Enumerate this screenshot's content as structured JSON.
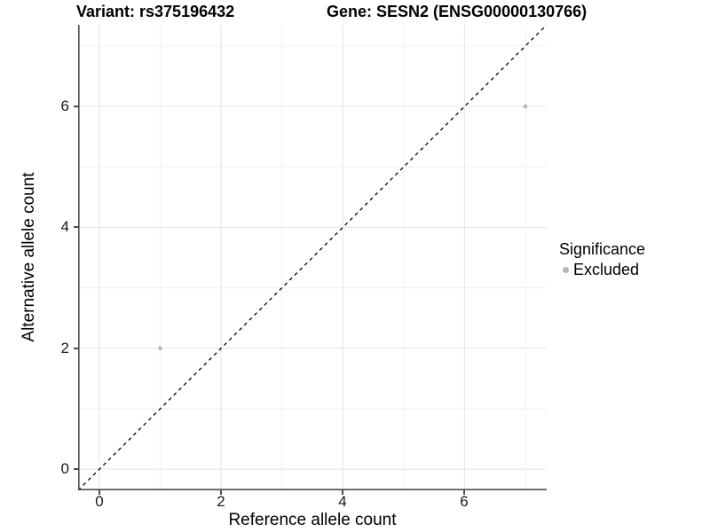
{
  "header": {
    "variant_title": "Variant: rs375196432",
    "gene_title": "Gene: SESN2 (ENSG00000130766)"
  },
  "chart_data": {
    "type": "scatter",
    "xlabel": "Reference allele count",
    "ylabel": "Alternative allele count",
    "xlim": [
      -0.35,
      7.35
    ],
    "ylim": [
      -0.35,
      7.35
    ],
    "x_ticks": [
      0,
      2,
      4,
      6
    ],
    "y_ticks": [
      0,
      2,
      4,
      6
    ],
    "grid": {
      "major": [
        0,
        2,
        4,
        6
      ],
      "minor": [
        1,
        3,
        5,
        7
      ],
      "major_color": "#e4e4e4",
      "minor_color": "#f0f0f0"
    },
    "reference_line": {
      "name": "identity-line",
      "style": "dashed",
      "color": "#000000",
      "from": {
        "x": -0.35,
        "y": -0.35
      },
      "to": {
        "x": 7.35,
        "y": 7.35
      }
    },
    "series": [
      {
        "name": "Excluded",
        "color": "#b5b5b5",
        "point_radius": 2.3,
        "points": [
          {
            "x": 1,
            "y": 2
          },
          {
            "x": 7,
            "y": 6
          }
        ]
      }
    ],
    "legend": {
      "title": "Significance",
      "position": "right",
      "items": [
        {
          "label": "Excluded",
          "color": "#b5b5b5"
        }
      ]
    }
  },
  "colors": {
    "background": "#ffffff",
    "axis_line": "#4d4d4d",
    "tick_label": "#1a1a1a"
  }
}
